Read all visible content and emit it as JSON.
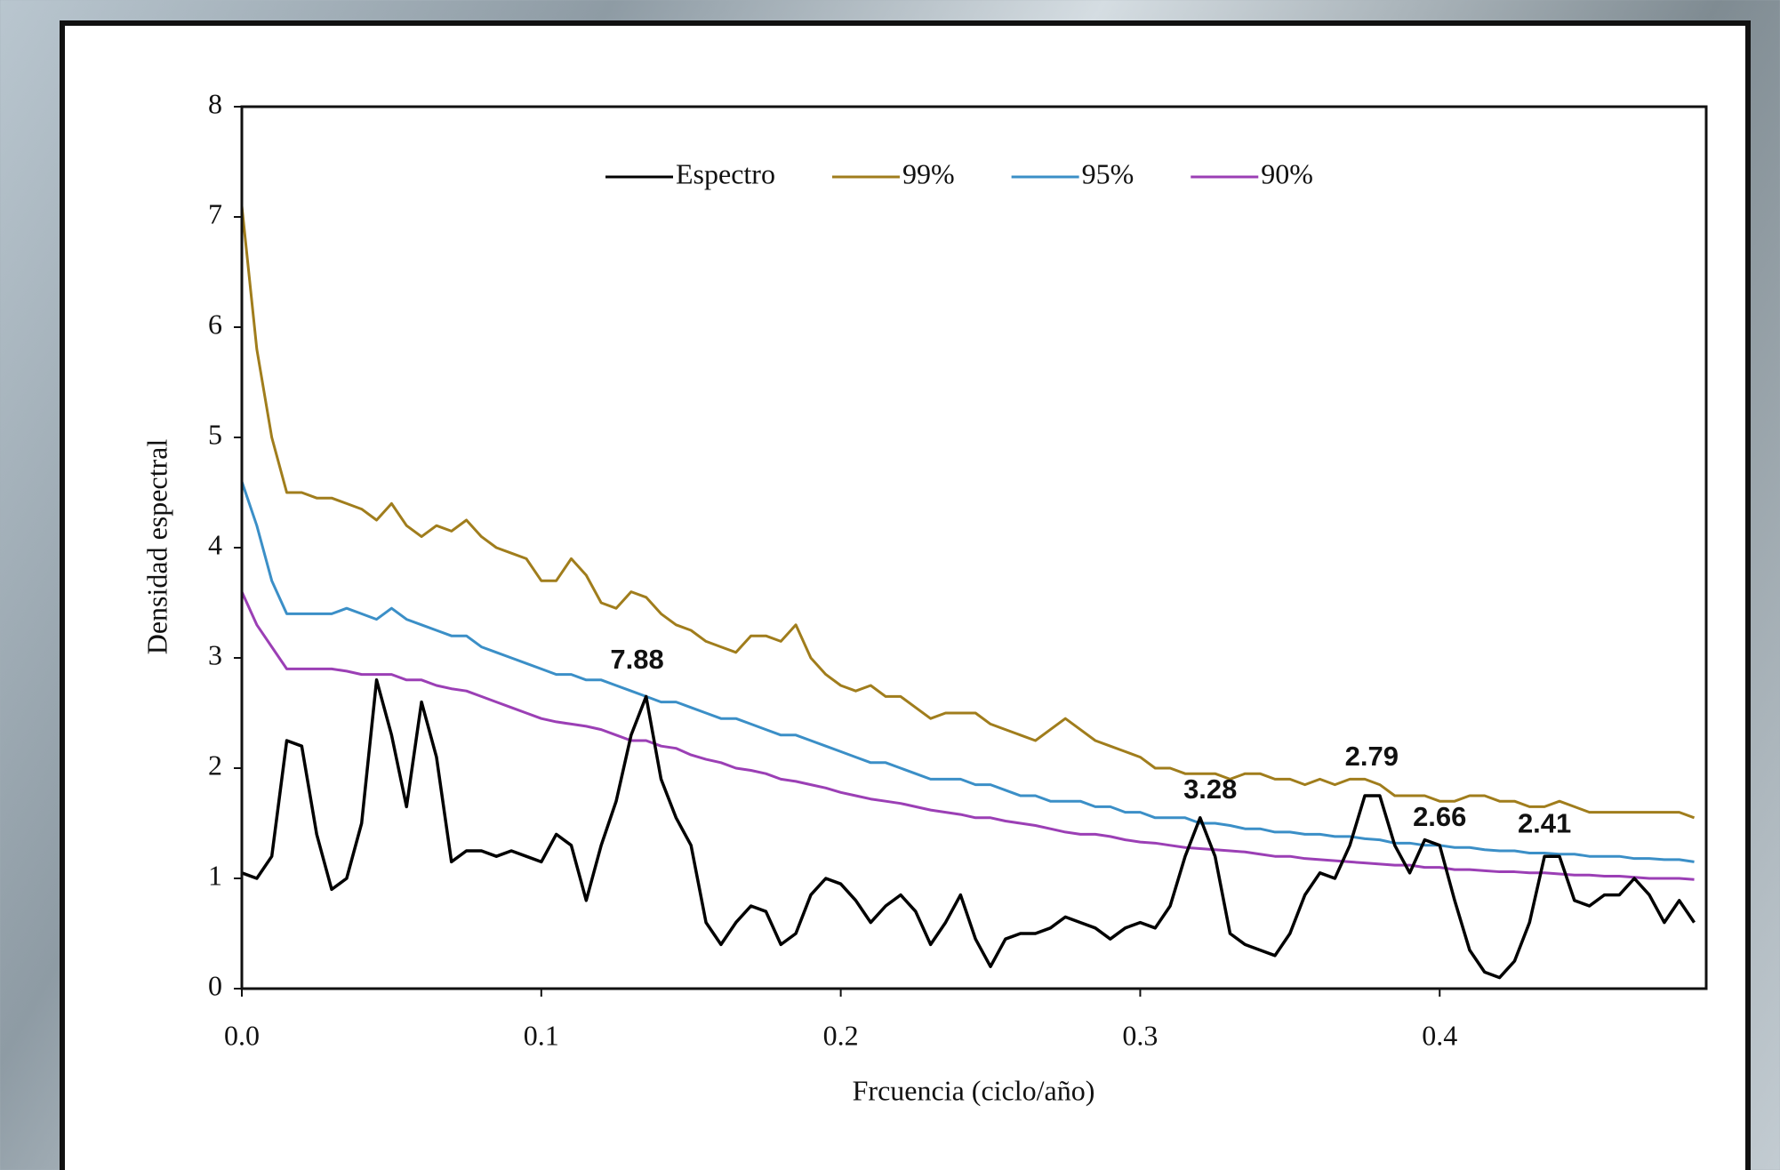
{
  "chart_data": {
    "type": "line",
    "xlabel": "Frcuencia (ciclo/año)",
    "ylabel": "Densidad espectral",
    "xlim": [
      0,
      0.489
    ],
    "ylim": [
      0,
      8
    ],
    "xticks": [
      {
        "value": 0,
        "label": "0.0"
      },
      0.1,
      0.2,
      0.3,
      0.4
    ],
    "yticks": [
      0,
      1,
      2,
      3,
      4,
      5,
      6,
      7,
      8
    ],
    "grid": false,
    "legend": "top",
    "x": [
      0,
      0.005,
      0.01,
      0.015,
      0.02,
      0.025,
      0.03,
      0.035,
      0.04,
      0.045,
      0.05,
      0.055,
      0.06,
      0.065,
      0.07,
      0.075,
      0.08,
      0.085,
      0.09,
      0.095,
      0.1,
      0.105,
      0.11,
      0.115,
      0.12,
      0.125,
      0.13,
      0.135,
      0.14,
      0.145,
      0.15,
      0.155,
      0.16,
      0.165,
      0.17,
      0.175,
      0.18,
      0.185,
      0.19,
      0.195,
      0.2,
      0.205,
      0.21,
      0.215,
      0.22,
      0.225,
      0.23,
      0.235,
      0.24,
      0.245,
      0.25,
      0.255,
      0.26,
      0.265,
      0.27,
      0.275,
      0.28,
      0.285,
      0.29,
      0.295,
      0.3,
      0.305,
      0.31,
      0.315,
      0.32,
      0.325,
      0.33,
      0.335,
      0.34,
      0.345,
      0.35,
      0.355,
      0.36,
      0.365,
      0.37,
      0.375,
      0.38,
      0.385,
      0.39,
      0.395,
      0.4,
      0.405,
      0.41,
      0.415,
      0.42,
      0.425,
      0.43,
      0.435,
      0.44,
      0.445,
      0.45,
      0.455,
      0.46,
      0.465,
      0.47,
      0.475,
      0.48,
      0.485
    ],
    "series": [
      {
        "name": "Espectro",
        "color": "#000000",
        "values": [
          1.05,
          1.0,
          1.2,
          2.25,
          2.2,
          1.4,
          0.9,
          1.0,
          1.5,
          2.8,
          2.3,
          1.65,
          2.6,
          2.1,
          1.15,
          1.25,
          1.25,
          1.2,
          1.25,
          1.2,
          1.15,
          1.4,
          1.3,
          0.8,
          1.3,
          1.7,
          2.3,
          2.65,
          1.9,
          1.55,
          1.3,
          0.6,
          0.4,
          0.6,
          0.75,
          0.7,
          0.4,
          0.5,
          0.85,
          1.0,
          0.95,
          0.8,
          0.6,
          0.75,
          0.85,
          0.7,
          0.4,
          0.6,
          0.85,
          0.45,
          0.2,
          0.45,
          0.5,
          0.5,
          0.55,
          0.65,
          0.6,
          0.55,
          0.45,
          0.55,
          0.6,
          0.55,
          0.75,
          1.2,
          1.55,
          1.2,
          0.5,
          0.4,
          0.35,
          0.3,
          0.5,
          0.85,
          1.05,
          1.0,
          1.3,
          1.75,
          1.75,
          1.3,
          1.05,
          1.35,
          1.3,
          0.8,
          0.35,
          0.15,
          0.1,
          0.25,
          0.6,
          1.2,
          1.2,
          0.8,
          0.75,
          0.85,
          0.85,
          1.0,
          0.85,
          0.6,
          0.8,
          0.6
        ]
      },
      {
        "name": "99%",
        "color": "#a07d1c",
        "values": [
          7.1,
          5.8,
          5.0,
          4.5,
          4.5,
          4.45,
          4.45,
          4.4,
          4.35,
          4.25,
          4.4,
          4.2,
          4.1,
          4.2,
          4.15,
          4.25,
          4.1,
          4.0,
          3.95,
          3.9,
          3.7,
          3.7,
          3.9,
          3.75,
          3.5,
          3.45,
          3.6,
          3.55,
          3.4,
          3.3,
          3.25,
          3.15,
          3.1,
          3.05,
          3.2,
          3.2,
          3.15,
          3.3,
          3.0,
          2.85,
          2.75,
          2.7,
          2.75,
          2.65,
          2.65,
          2.55,
          2.45,
          2.5,
          2.5,
          2.5,
          2.4,
          2.35,
          2.3,
          2.25,
          2.35,
          2.45,
          2.35,
          2.25,
          2.2,
          2.15,
          2.1,
          2.0,
          2.0,
          1.95,
          1.95,
          1.95,
          1.9,
          1.95,
          1.95,
          1.9,
          1.9,
          1.85,
          1.9,
          1.85,
          1.9,
          1.9,
          1.85,
          1.75,
          1.75,
          1.75,
          1.7,
          1.7,
          1.75,
          1.75,
          1.7,
          1.7,
          1.65,
          1.65,
          1.7,
          1.65,
          1.6,
          1.6,
          1.6,
          1.6,
          1.6,
          1.6,
          1.6,
          1.55
        ]
      },
      {
        "name": "95%",
        "color": "#3b8fc7",
        "values": [
          4.6,
          4.2,
          3.7,
          3.4,
          3.4,
          3.4,
          3.4,
          3.45,
          3.4,
          3.35,
          3.45,
          3.35,
          3.3,
          3.25,
          3.2,
          3.2,
          3.1,
          3.05,
          3.0,
          2.95,
          2.9,
          2.85,
          2.85,
          2.8,
          2.8,
          2.75,
          2.7,
          2.65,
          2.6,
          2.6,
          2.55,
          2.5,
          2.45,
          2.45,
          2.4,
          2.35,
          2.3,
          2.3,
          2.25,
          2.2,
          2.15,
          2.1,
          2.05,
          2.05,
          2.0,
          1.95,
          1.9,
          1.9,
          1.9,
          1.85,
          1.85,
          1.8,
          1.75,
          1.75,
          1.7,
          1.7,
          1.7,
          1.65,
          1.65,
          1.6,
          1.6,
          1.55,
          1.55,
          1.55,
          1.5,
          1.5,
          1.48,
          1.45,
          1.45,
          1.42,
          1.42,
          1.4,
          1.4,
          1.38,
          1.38,
          1.36,
          1.35,
          1.32,
          1.32,
          1.3,
          1.3,
          1.28,
          1.28,
          1.26,
          1.25,
          1.25,
          1.23,
          1.23,
          1.22,
          1.22,
          1.2,
          1.2,
          1.2,
          1.18,
          1.18,
          1.17,
          1.17,
          1.15
        ]
      },
      {
        "name": "90%",
        "color": "#9b3fb5",
        "values": [
          3.6,
          3.3,
          3.1,
          2.9,
          2.9,
          2.9,
          2.9,
          2.88,
          2.85,
          2.85,
          2.85,
          2.8,
          2.8,
          2.75,
          2.72,
          2.7,
          2.65,
          2.6,
          2.55,
          2.5,
          2.45,
          2.42,
          2.4,
          2.38,
          2.35,
          2.3,
          2.25,
          2.25,
          2.2,
          2.18,
          2.12,
          2.08,
          2.05,
          2.0,
          1.98,
          1.95,
          1.9,
          1.88,
          1.85,
          1.82,
          1.78,
          1.75,
          1.72,
          1.7,
          1.68,
          1.65,
          1.62,
          1.6,
          1.58,
          1.55,
          1.55,
          1.52,
          1.5,
          1.48,
          1.45,
          1.42,
          1.4,
          1.4,
          1.38,
          1.35,
          1.33,
          1.32,
          1.3,
          1.28,
          1.27,
          1.26,
          1.25,
          1.24,
          1.22,
          1.2,
          1.2,
          1.18,
          1.17,
          1.16,
          1.15,
          1.14,
          1.13,
          1.12,
          1.12,
          1.1,
          1.1,
          1.08,
          1.08,
          1.07,
          1.06,
          1.06,
          1.05,
          1.05,
          1.04,
          1.03,
          1.03,
          1.02,
          1.02,
          1.01,
          1.0,
          1.0,
          1.0,
          0.99
        ]
      }
    ],
    "annotations": [
      {
        "text": "7.88",
        "x": 0.132,
        "y": 2.97
      },
      {
        "text": "3.28",
        "x": 0.3234,
        "y": 1.79
      },
      {
        "text": "2.79",
        "x": 0.3773,
        "y": 2.09
      },
      {
        "text": "2.66",
        "x": 0.4,
        "y": 1.54
      },
      {
        "text": "2.41",
        "x": 0.435,
        "y": 1.48
      }
    ]
  }
}
